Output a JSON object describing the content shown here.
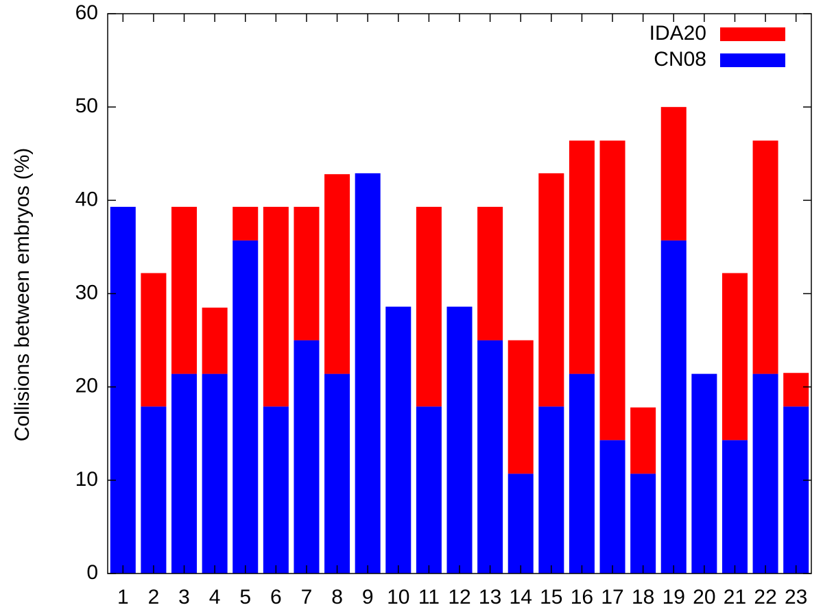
{
  "chart_data": {
    "type": "stacked_bar",
    "ylabel": "Collisions between embryos (%)",
    "categories": [
      "1",
      "2",
      "3",
      "4",
      "5",
      "6",
      "7",
      "8",
      "9",
      "10",
      "11",
      "12",
      "13",
      "14",
      "15",
      "16",
      "17",
      "18",
      "19",
      "20",
      "21",
      "22",
      "23"
    ],
    "series": [
      {
        "name": "IDA20",
        "color": "#ff0000",
        "values": [
          0,
          14.3,
          17.9,
          7.1,
          3.6,
          21.4,
          14.3,
          21.4,
          0,
          0,
          21.4,
          0,
          14.3,
          14.3,
          25,
          25,
          32.1,
          7.1,
          14.3,
          0,
          17.9,
          25,
          3.6
        ]
      },
      {
        "name": "CN08",
        "color": "#0000ff",
        "values": [
          39.3,
          17.9,
          21.4,
          21.4,
          35.7,
          17.9,
          25,
          21.4,
          42.9,
          28.6,
          17.9,
          28.6,
          25,
          10.7,
          17.9,
          21.4,
          14.3,
          10.7,
          35.7,
          21.4,
          14.3,
          21.4,
          17.9
        ]
      }
    ],
    "ylim": [
      0,
      60
    ],
    "yticks": [
      0,
      10,
      20,
      30,
      40,
      50,
      60
    ],
    "legend": "upper right",
    "grid": false
  }
}
